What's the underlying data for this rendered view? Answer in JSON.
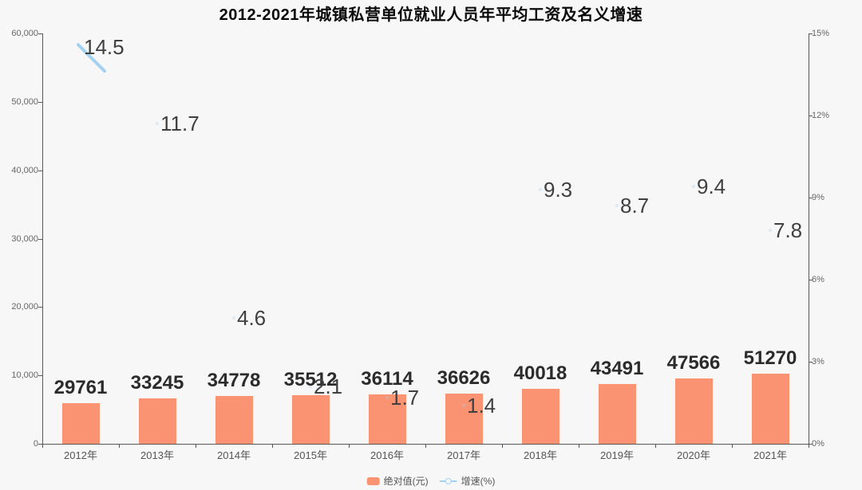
{
  "chart_data": {
    "type": "bar",
    "title": "2012-2021年城镇私营单位就业人员年平均工资及名义增速",
    "categories": [
      "2012年",
      "2013年",
      "2014年",
      "2015年",
      "2016年",
      "2017年",
      "2018年",
      "2019年",
      "2020年",
      "2021年"
    ],
    "series": [
      {
        "name": "绝对值(元)",
        "type": "bar",
        "values": [
          29761,
          33245,
          34778,
          35512,
          36114,
          36626,
          40018,
          43491,
          47566,
          51270
        ],
        "color": "#fa9372"
      },
      {
        "name": "增速(%)",
        "type": "line",
        "values": [
          14.5,
          11.7,
          4.6,
          2.1,
          1.7,
          1.4,
          9.3,
          8.7,
          9.4,
          7.8
        ],
        "color": "#a5d1f0"
      }
    ],
    "left_axis": {
      "title": "",
      "min": 0,
      "max": 60000,
      "ticks": [
        "0",
        "10,000",
        "20,000",
        "30,000",
        "40,000",
        "50,000",
        "60,000"
      ]
    },
    "right_axis": {
      "title": "",
      "min": 0,
      "max": 15,
      "ticks": [
        "0%",
        "3%",
        "6%",
        "9%",
        "12%",
        "15%"
      ]
    },
    "legend": {
      "position": "bottom-center",
      "items": [
        "绝对值(元)",
        "增速(%)"
      ]
    },
    "layout_hints": {
      "grid_lines": false,
      "background": "#f7f7f7",
      "axis_color": "#585858",
      "bar_display_axis_max": 300000,
      "line_mostly_hidden_visible_segment_at_first_point": true
    }
  }
}
